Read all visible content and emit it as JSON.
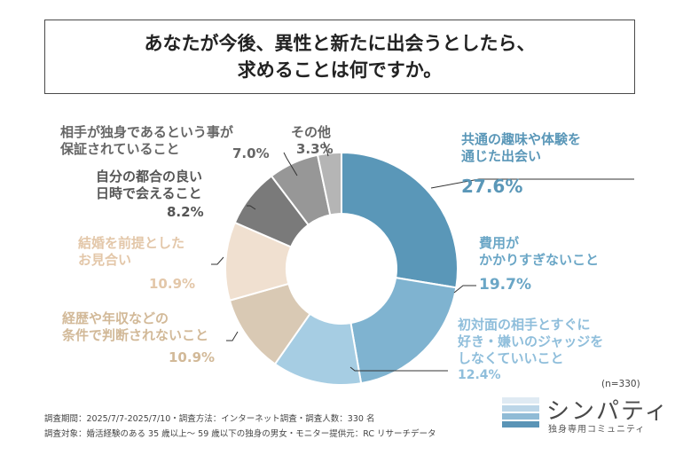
{
  "title": {
    "line1": "あなたが今後、異性と新たに出会うとしたら、",
    "line2": "求めることは何ですか。"
  },
  "chart_data": {
    "type": "pie",
    "donut": true,
    "total_n": "(n=330)",
    "slices": [
      {
        "line1": "共通の趣味や体験を",
        "line2": "通じた出会い",
        "line3": "",
        "value": 27.6,
        "value_label": "27.6%",
        "color": "#5a97b8",
        "label_color": "#5a97b8"
      },
      {
        "line1": "費用が",
        "line2": "かかりすぎないこと",
        "line3": "",
        "value": 19.7,
        "value_label": "19.7%",
        "color": "#7fb3d0",
        "label_color": "#6aa6c6"
      },
      {
        "line1": "初対面の相手とすぐに",
        "line2": "好き・嫌いのジャッジを",
        "line3": "しなくていいこと",
        "value": 12.4,
        "value_label": "12.4%",
        "color": "#a6cde3",
        "label_color": "#8fbedb"
      },
      {
        "line1": "経歴や年収などの",
        "line2": "条件で判断されないこと",
        "line3": "",
        "value": 10.9,
        "value_label": "10.9%",
        "color": "#d9c9b4",
        "label_color": "#d2b998"
      },
      {
        "line1": "結婚を前提とした",
        "line2": "お見合い",
        "line3": "",
        "value": 10.9,
        "value_label": "10.9%",
        "color": "#f0e0d0",
        "label_color": "#e3c7a9"
      },
      {
        "line1": "自分の都合の良い",
        "line2": "日時で会えること",
        "line3": "",
        "value": 8.2,
        "value_label": "8.2%",
        "color": "#7a7a7a",
        "label_color": "#555555"
      },
      {
        "line1": "相手が独身であるという事が",
        "line2": "保証されていること",
        "line3": "",
        "value": 7.0,
        "value_label": "7.0%",
        "color": "#979797",
        "label_color": "#666666"
      },
      {
        "line1": "その他",
        "line2": "",
        "line3": "",
        "value": 3.3,
        "value_label": "3.3%",
        "color": "#b5b5b5",
        "label_color": "#666666"
      }
    ]
  },
  "footer": {
    "line1": "調査期間：2025/7/7-2025/7/10・調査方法：インターネット調査・調査人数：330 名",
    "line2": "調査対象：婚活経験のある 35 歳以上～ 59 歳以下の独身の男女・モニター提供元：RC リサーチデータ"
  },
  "logo": {
    "name": "シンパティ",
    "tagline": "独身専用コミュニティ",
    "bar_colors": [
      "#dfeaf3",
      "#bcd6e8",
      "#8fbbd6",
      "#5a94b6"
    ]
  }
}
